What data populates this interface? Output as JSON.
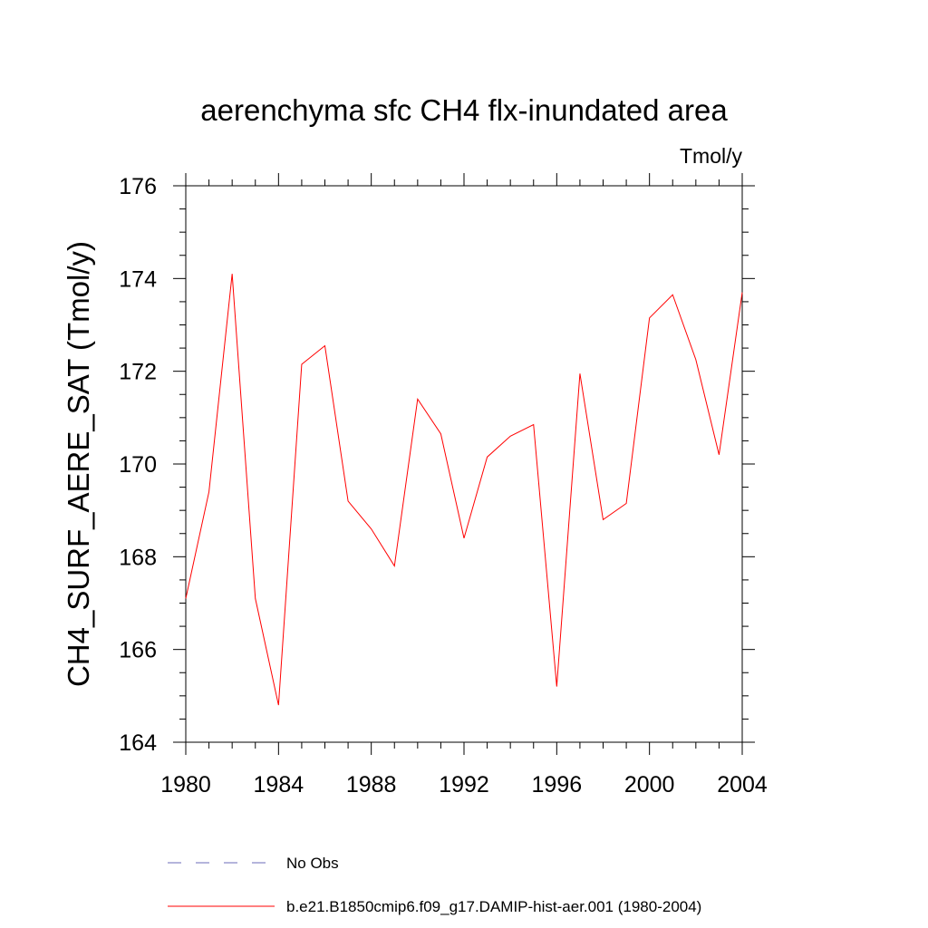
{
  "chart_data": {
    "type": "line",
    "title": "aerenchyma sfc CH4 flx-inundated area",
    "units": "Tmol/y",
    "ylabel": "CH4_SURF_AERE_SAT  (Tmol/y)",
    "xlabel": "",
    "xlim": [
      1980,
      2004
    ],
    "ylim": [
      164,
      176
    ],
    "x_ticks": [
      1980,
      1984,
      1988,
      1992,
      1996,
      2000,
      2004
    ],
    "y_ticks": [
      164,
      166,
      168,
      170,
      172,
      174,
      176
    ],
    "grid": false,
    "legend_position": "bottom",
    "series": [
      {
        "name": "No Obs",
        "color": "#6b6bb8",
        "style": "dashed",
        "x": [],
        "values": []
      },
      {
        "name": "b.e21.B1850cmip6.f09_g17.DAMIP-hist-aer.001 (1980-2004)",
        "color": "#ff0000",
        "style": "solid",
        "x": [
          1980,
          1981,
          1982,
          1983,
          1984,
          1985,
          1986,
          1987,
          1988,
          1989,
          1990,
          1991,
          1992,
          1993,
          1994,
          1995,
          1996,
          1997,
          1998,
          1999,
          2000,
          2001,
          2002,
          2003,
          2004
        ],
        "values": [
          167.1,
          169.4,
          174.1,
          167.1,
          164.8,
          172.15,
          172.55,
          169.2,
          168.6,
          167.8,
          171.4,
          170.65,
          168.4,
          170.15,
          170.6,
          170.85,
          165.2,
          171.95,
          168.8,
          169.15,
          173.15,
          173.65,
          172.25,
          170.2,
          173.7
        ]
      }
    ]
  }
}
